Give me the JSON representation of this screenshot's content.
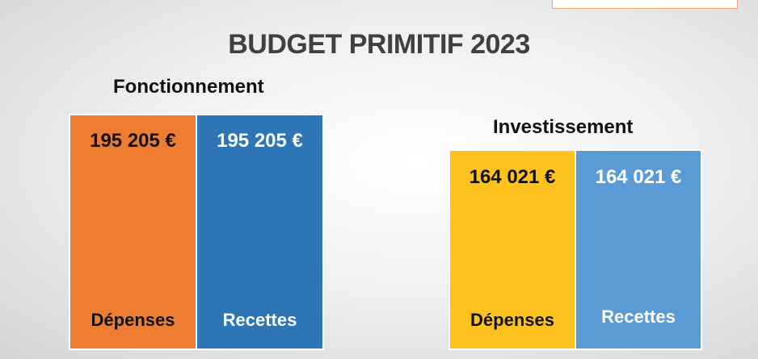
{
  "title": "BUDGET PRIMITIF 2023",
  "sections": [
    {
      "heading": "Fonctionnement",
      "blocks": [
        {
          "amount": "195 205 €",
          "label": "Dépenses"
        },
        {
          "amount": "195 205 €",
          "label": "Recettes"
        }
      ]
    },
    {
      "heading": "Investissement",
      "blocks": [
        {
          "amount": "164 021 €",
          "label": "Dépenses"
        },
        {
          "amount": "164 021 €",
          "label": "Recettes"
        }
      ]
    }
  ]
}
